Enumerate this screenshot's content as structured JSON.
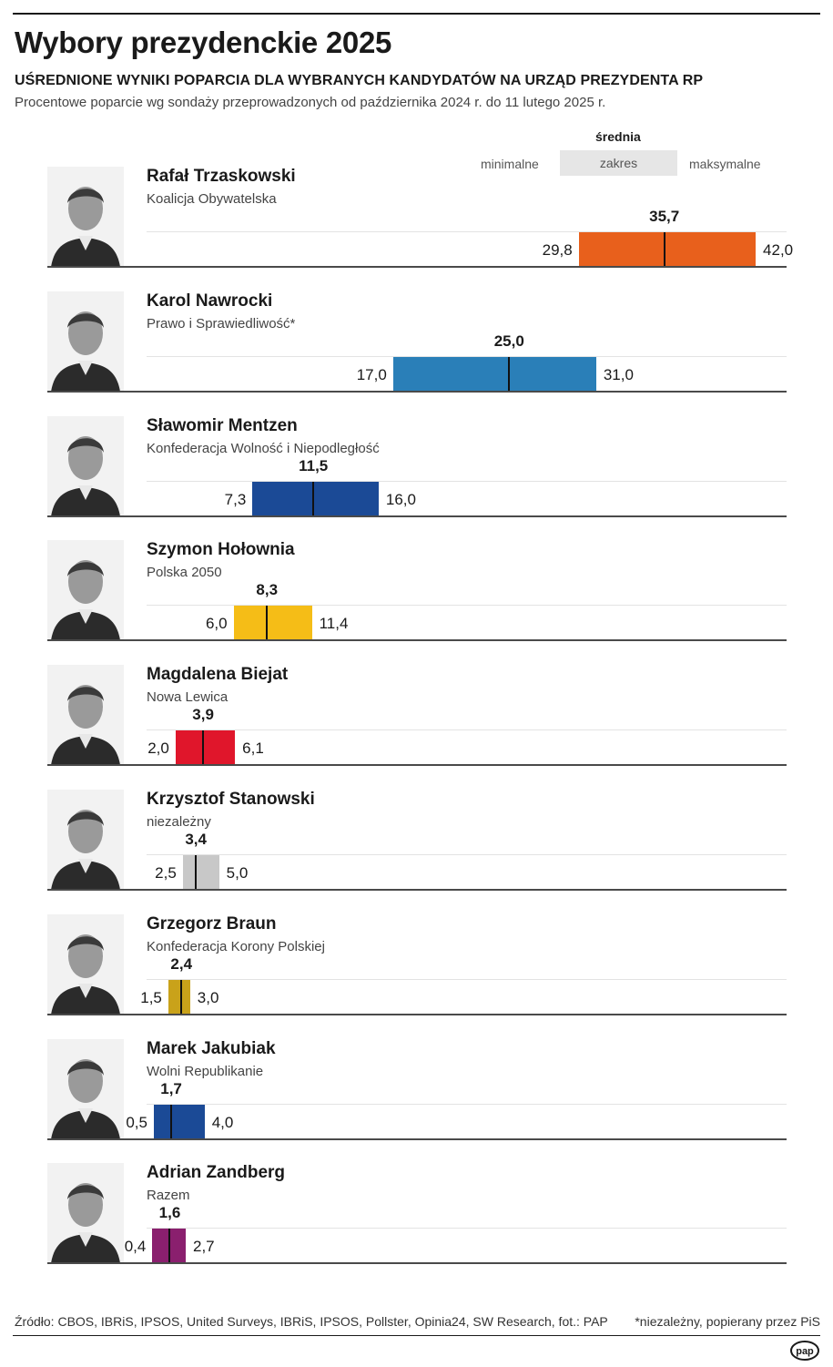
{
  "header": {
    "title": "Wybory prezydenckie 2025",
    "subtitle": "UŚREDNIONE WYNIKI POPARCIA DLA WYBRANYCH KANDYDATÓW NA URZĄD PREZYDENTA RP",
    "description": "Procentowe poparcie wg sondaży przeprowadzonych od października 2024 r. do 11 lutego 2025 r."
  },
  "legend": {
    "mean": "średnia",
    "range": "zakres",
    "min": "minimalne",
    "max": "maksymalne"
  },
  "footer": {
    "source": "Źródło: CBOS, IBRiS, IPSOS, United Surveys, IBRiS, IPSOS, Pollster, Opinia24, SW Research, fot.: PAP",
    "note": "*niezależny, popierany przez PiS",
    "logo_text": "pap"
  },
  "chart_data": {
    "type": "range-bar",
    "title": "Wybory prezydenckie 2025",
    "categories": [
      "Rafał Trzaskowski",
      "Karol Nawrocki",
      "Sławomir Mentzen",
      "Szymon Hołownia",
      "Magdalena Biejat",
      "Krzysztof Stanowski",
      "Grzegorz Braun",
      "Marek Jakubiak",
      "Adrian Zandberg"
    ],
    "candidates": [
      {
        "name": "Rafał Trzaskowski",
        "party": "Koalicja Obywatelska",
        "min": 29.8,
        "mean": 35.7,
        "max": 42.0,
        "min_label": "29,8",
        "mean_label": "35,7",
        "max_label": "42,0",
        "color": "#e8601c",
        "photo": "portrait-photo"
      },
      {
        "name": "Karol Nawrocki",
        "party": "Prawo i Sprawiedliwość*",
        "min": 17.0,
        "mean": 25.0,
        "max": 31.0,
        "min_label": "17,0",
        "mean_label": "25,0",
        "max_label": "31,0",
        "color": "#2a7fb8",
        "photo": "portrait-photo"
      },
      {
        "name": "Sławomir Mentzen",
        "party": "Konfederacja Wolność i Niepodległość",
        "min": 7.3,
        "mean": 11.5,
        "max": 16.0,
        "min_label": "7,3",
        "mean_label": "11,5",
        "max_label": "16,0",
        "color": "#1b4a96",
        "photo": "portrait-photo"
      },
      {
        "name": "Szymon Hołownia",
        "party": "Polska 2050",
        "min": 6.0,
        "mean": 8.3,
        "max": 11.4,
        "min_label": "6,0",
        "mean_label": "8,3",
        "max_label": "11,4",
        "color": "#f5bd17",
        "photo": "portrait-photo"
      },
      {
        "name": "Magdalena Biejat",
        "party": "Nowa Lewica",
        "min": 2.0,
        "mean": 3.9,
        "max": 6.1,
        "min_label": "2,0",
        "mean_label": "3,9",
        "max_label": "6,1",
        "color": "#e0162b",
        "photo": "portrait-photo"
      },
      {
        "name": "Krzysztof Stanowski",
        "party": "niezależny",
        "min": 2.5,
        "mean": 3.4,
        "max": 5.0,
        "min_label": "2,5",
        "mean_label": "3,4",
        "max_label": "5,0",
        "color": "#c8c8c8",
        "photo": "portrait-photo"
      },
      {
        "name": "Grzegorz Braun",
        "party": "Konfederacja Korony Polskiej",
        "min": 1.5,
        "mean": 2.4,
        "max": 3.0,
        "min_label": "1,5",
        "mean_label": "2,4",
        "max_label": "3,0",
        "color": "#c9a21a",
        "photo": "portrait-photo"
      },
      {
        "name": "Marek Jakubiak",
        "party": "Wolni Republikanie",
        "min": 0.5,
        "mean": 1.7,
        "max": 4.0,
        "min_label": "0,5",
        "mean_label": "1,7",
        "max_label": "4,0",
        "color": "#1b4a96",
        "photo": "portrait-photo"
      },
      {
        "name": "Adrian Zandberg",
        "party": "Razem",
        "min": 0.4,
        "mean": 1.6,
        "max": 2.7,
        "min_label": "0,4",
        "mean_label": "1,6",
        "max_label": "2,7",
        "color": "#8a1f6e",
        "photo": "portrait-photo"
      }
    ],
    "xlim": [
      0,
      50
    ],
    "grid": false,
    "legend_position": "top-right"
  }
}
